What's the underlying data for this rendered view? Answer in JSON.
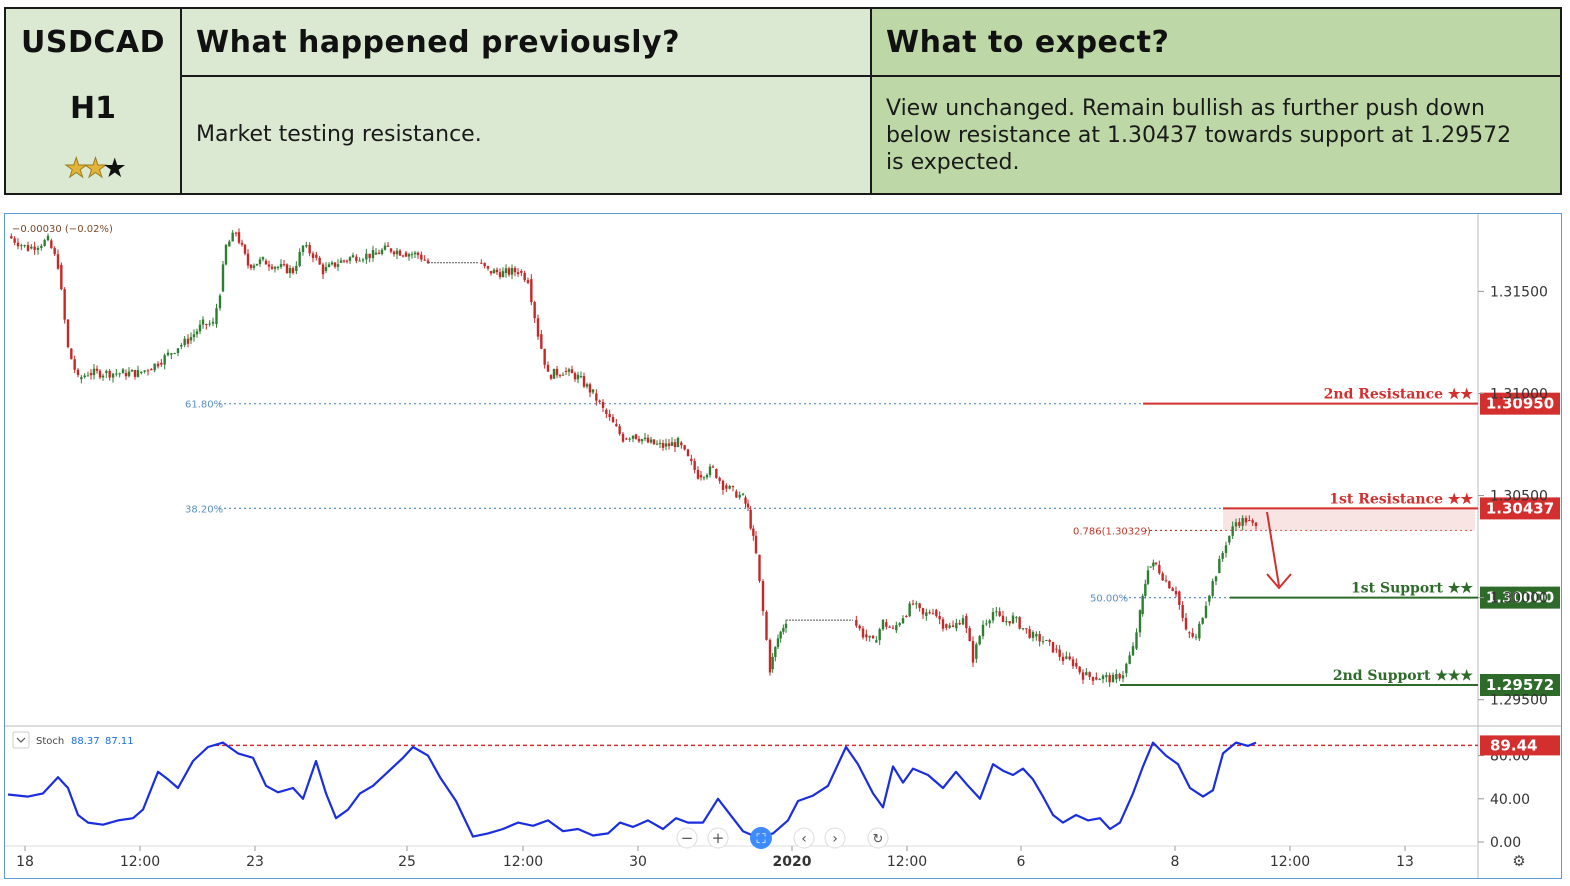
{
  "header": {
    "symbol": "USDCAD",
    "timeframe": "H1",
    "rating": {
      "filled": 2,
      "total": 3
    },
    "col_previous_title": "What happened previously?",
    "col_expect_title": "What to expect?",
    "previous_text": "Market testing resistance.",
    "expect_lines": [
      "View unchanged. Remain bullish as further push down",
      "below resistance at 1.30437 towards support at 1.29572",
      "is expected."
    ]
  },
  "chart_data": [
    {
      "type": "line",
      "name": "price",
      "change_label": "−0.00030 (−0.02%)",
      "x_ticks": [
        "18",
        "12:00",
        "23",
        "25",
        "12:00",
        "30",
        "2020",
        "12:00",
        "6",
        "8",
        "12:00",
        "13"
      ],
      "y_ticks": [
        "1.31500",
        "1.31000",
        "1.30500",
        "1.30000",
        "1.29500"
      ],
      "ylim": [
        1.2943,
        1.3183
      ],
      "close_path": [
        [
          0,
          1.3177
        ],
        [
          20,
          1.3171
        ],
        [
          40,
          1.3175
        ],
        [
          50,
          1.3163
        ],
        [
          60,
          1.3122
        ],
        [
          70,
          1.3107
        ],
        [
          80,
          1.311
        ],
        [
          95,
          1.311
        ],
        [
          115,
          1.311
        ],
        [
          130,
          1.311
        ],
        [
          140,
          1.3112
        ],
        [
          150,
          1.3115
        ],
        [
          160,
          1.3119
        ],
        [
          170,
          1.3123
        ],
        [
          180,
          1.3126
        ],
        [
          195,
          1.3134
        ],
        [
          205,
          1.3134
        ],
        [
          212,
          1.315
        ],
        [
          218,
          1.3172
        ],
        [
          228,
          1.3179
        ],
        [
          240,
          1.3163
        ],
        [
          255,
          1.3165
        ],
        [
          270,
          1.3162
        ],
        [
          285,
          1.316
        ],
        [
          295,
          1.3172
        ],
        [
          305,
          1.3168
        ],
        [
          315,
          1.316
        ],
        [
          330,
          1.3164
        ],
        [
          345,
          1.3167
        ],
        [
          365,
          1.3168
        ],
        [
          380,
          1.3171
        ],
        [
          395,
          1.3169
        ],
        [
          410,
          1.3168
        ],
        [
          420,
          1.3164
        ],
        [
          470,
          1.3164
        ],
        [
          480,
          1.316
        ],
        [
          495,
          1.3159
        ],
        [
          510,
          1.316
        ],
        [
          520,
          1.3156
        ],
        [
          530,
          1.3129
        ],
        [
          540,
          1.3109
        ],
        [
          555,
          1.3111
        ],
        [
          570,
          1.3108
        ],
        [
          585,
          1.31
        ],
        [
          595,
          1.3092
        ],
        [
          605,
          1.3085
        ],
        [
          615,
          1.3078
        ],
        [
          625,
          1.308
        ],
        [
          640,
          1.3076
        ],
        [
          655,
          1.3074
        ],
        [
          670,
          1.3076
        ],
        [
          680,
          1.3068
        ],
        [
          690,
          1.306
        ],
        [
          705,
          1.3063
        ],
        [
          715,
          1.3055
        ],
        [
          725,
          1.3052
        ],
        [
          735,
          1.3049
        ],
        [
          740,
          1.3043
        ],
        [
          748,
          1.3021
        ],
        [
          755,
          1.2993
        ],
        [
          762,
          1.2965
        ],
        [
          770,
          1.298
        ],
        [
          778,
          1.2989
        ],
        [
          845,
          1.2989
        ],
        [
          855,
          1.2982
        ],
        [
          865,
          1.2978
        ],
        [
          875,
          1.2988
        ],
        [
          885,
          1.2984
        ],
        [
          895,
          1.2991
        ],
        [
          905,
          1.2997
        ],
        [
          915,
          1.2991
        ],
        [
          925,
          1.2994
        ],
        [
          935,
          1.2987
        ],
        [
          945,
          1.2985
        ],
        [
          955,
          1.2991
        ],
        [
          965,
          1.297
        ],
        [
          975,
          1.2987
        ],
        [
          985,
          1.2993
        ],
        [
          995,
          1.2988
        ],
        [
          1005,
          1.299
        ],
        [
          1015,
          1.2985
        ],
        [
          1025,
          1.2981
        ],
        [
          1035,
          1.2979
        ],
        [
          1045,
          1.2975
        ],
        [
          1055,
          1.297
        ],
        [
          1065,
          1.2968
        ],
        [
          1075,
          1.2962
        ],
        [
          1085,
          1.2961
        ],
        [
          1095,
          1.2961
        ],
        [
          1105,
          1.296
        ],
        [
          1115,
          1.2963
        ],
        [
          1125,
          1.2975
        ],
        [
          1132,
          1.2992
        ],
        [
          1140,
          1.3015
        ],
        [
          1148,
          1.3016
        ],
        [
          1158,
          1.3008
        ],
        [
          1168,
          1.3003
        ],
        [
          1178,
          1.2983
        ],
        [
          1188,
          1.298
        ],
        [
          1198,
          1.2998
        ],
        [
          1208,
          1.3012
        ],
        [
          1218,
          1.3027
        ],
        [
          1228,
          1.3037
        ],
        [
          1238,
          1.3038
        ],
        [
          1248,
          1.3034
        ]
      ]
    },
    {
      "type": "line",
      "name": "Stoch",
      "label": "Stoch",
      "k_value_label": "88.37",
      "d_value_label": "87.11",
      "y_ticks": [
        "80.00",
        "40.00",
        "0.00"
      ],
      "ylim": [
        0,
        100
      ],
      "values": [
        [
          0,
          44
        ],
        [
          20,
          42
        ],
        [
          35,
          45
        ],
        [
          50,
          60
        ],
        [
          60,
          50
        ],
        [
          70,
          25
        ],
        [
          80,
          18
        ],
        [
          95,
          16
        ],
        [
          110,
          20
        ],
        [
          125,
          22
        ],
        [
          135,
          30
        ],
        [
          150,
          65
        ],
        [
          160,
          58
        ],
        [
          170,
          50
        ],
        [
          185,
          75
        ],
        [
          200,
          88
        ],
        [
          215,
          92
        ],
        [
          230,
          82
        ],
        [
          245,
          78
        ],
        [
          258,
          52
        ],
        [
          270,
          46
        ],
        [
          285,
          50
        ],
        [
          295,
          40
        ],
        [
          308,
          75
        ],
        [
          318,
          45
        ],
        [
          328,
          22
        ],
        [
          340,
          30
        ],
        [
          352,
          45
        ],
        [
          365,
          52
        ],
        [
          380,
          65
        ],
        [
          395,
          78
        ],
        [
          405,
          88
        ],
        [
          420,
          80
        ],
        [
          432,
          60
        ],
        [
          448,
          38
        ],
        [
          465,
          5
        ],
        [
          480,
          8
        ],
        [
          495,
          12
        ],
        [
          510,
          18
        ],
        [
          525,
          15
        ],
        [
          540,
          20
        ],
        [
          555,
          10
        ],
        [
          570,
          12
        ],
        [
          585,
          6
        ],
        [
          600,
          8
        ],
        [
          612,
          18
        ],
        [
          625,
          14
        ],
        [
          640,
          20
        ],
        [
          655,
          12
        ],
        [
          668,
          22
        ],
        [
          680,
          18
        ],
        [
          695,
          18
        ],
        [
          710,
          40
        ],
        [
          720,
          28
        ],
        [
          735,
          10
        ],
        [
          750,
          4
        ],
        [
          765,
          8
        ],
        [
          780,
          20
        ],
        [
          790,
          38
        ],
        [
          805,
          43
        ],
        [
          820,
          52
        ],
        [
          838,
          88
        ],
        [
          850,
          72
        ],
        [
          865,
          45
        ],
        [
          875,
          32
        ],
        [
          885,
          70
        ],
        [
          895,
          55
        ],
        [
          905,
          68
        ],
        [
          920,
          62
        ],
        [
          935,
          50
        ],
        [
          948,
          65
        ],
        [
          960,
          52
        ],
        [
          972,
          40
        ],
        [
          985,
          72
        ],
        [
          995,
          66
        ],
        [
          1005,
          62
        ],
        [
          1015,
          68
        ],
        [
          1025,
          58
        ],
        [
          1035,
          42
        ],
        [
          1045,
          25
        ],
        [
          1055,
          18
        ],
        [
          1068,
          25
        ],
        [
          1080,
          20
        ],
        [
          1092,
          22
        ],
        [
          1102,
          12
        ],
        [
          1112,
          18
        ],
        [
          1125,
          45
        ],
        [
          1135,
          70
        ],
        [
          1145,
          92
        ],
        [
          1158,
          80
        ],
        [
          1170,
          72
        ],
        [
          1182,
          50
        ],
        [
          1195,
          42
        ],
        [
          1205,
          48
        ],
        [
          1215,
          82
        ],
        [
          1228,
          92
        ],
        [
          1240,
          89
        ],
        [
          1248,
          92
        ]
      ]
    }
  ],
  "levels": [
    {
      "id": "resistance-2",
      "label": "2nd Resistance ★★",
      "value": 1.3095,
      "value_label": "1.30950",
      "color": "#d32f2f"
    },
    {
      "id": "resistance-1",
      "label": "1st Resistance ★★",
      "value": 1.30437,
      "value_label": "1.30437",
      "color": "#d32f2f"
    },
    {
      "id": "support-1",
      "label": "1st Support ★★",
      "value": 1.3,
      "value_label": "1.30000",
      "color": "#2e6b2a"
    },
    {
      "id": "support-2",
      "label": "2nd Support ★★★",
      "value": 1.29572,
      "value_label": "1.29572",
      "color": "#2e6b2a"
    }
  ],
  "fibs": [
    {
      "label": "61.80%",
      "value": 1.3095,
      "color": "#5b8fc6"
    },
    {
      "label": "38.20%",
      "value": 1.30437,
      "color": "#5b8fc6"
    },
    {
      "label": "50.00%",
      "value": 1.3,
      "color": "#5b8fc6"
    },
    {
      "label": "0.786(1.30329)",
      "value": 1.30329,
      "color": "#c0392b"
    }
  ],
  "stoch_level": {
    "value": 89.44,
    "value_label": "89.44",
    "color": "#d32f2f"
  },
  "colors": {
    "up": "#2e7d32",
    "down": "#c62828",
    "stoch": "#1a2ee0",
    "chart_border": "#5b9bd5"
  }
}
